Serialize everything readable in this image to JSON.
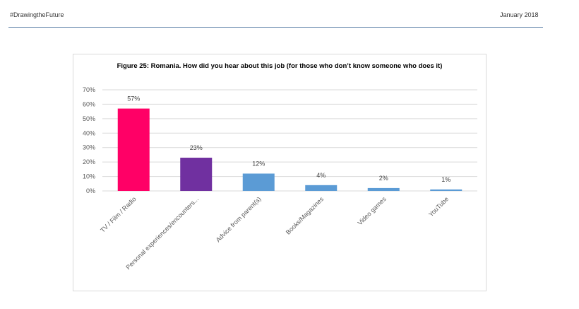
{
  "header": {
    "left_text": "#DrawingtheFuture",
    "right_text": "January 2018"
  },
  "chart_data": {
    "type": "bar",
    "title": "Figure 25: Romania. How did you hear about this job (for those who don’t know someone who does it)",
    "categories": [
      "TV / Film / Radio",
      "Personal experiences/encounters...",
      "Advice from parent(s)",
      "Books/Magazines",
      "Video games",
      "YouTube"
    ],
    "values": [
      57,
      23,
      12,
      4,
      2,
      1
    ],
    "value_labels": [
      "57%",
      "23%",
      "12%",
      "4%",
      "2%",
      "1%"
    ],
    "bar_colors": [
      "#ff0066",
      "#7030a0",
      "#5b9bd5",
      "#5b9bd5",
      "#5b9bd5",
      "#5b9bd5"
    ],
    "y_ticks": [
      0,
      10,
      20,
      30,
      40,
      50,
      60,
      70
    ],
    "y_tick_labels": [
      "0%",
      "10%",
      "20%",
      "30%",
      "40%",
      "50%",
      "60%",
      "70%"
    ],
    "ylim": [
      0,
      70
    ],
    "xlabel": "",
    "ylabel": "",
    "grid": true,
    "legend": "none",
    "gridline_color": "#d9d9d9"
  }
}
